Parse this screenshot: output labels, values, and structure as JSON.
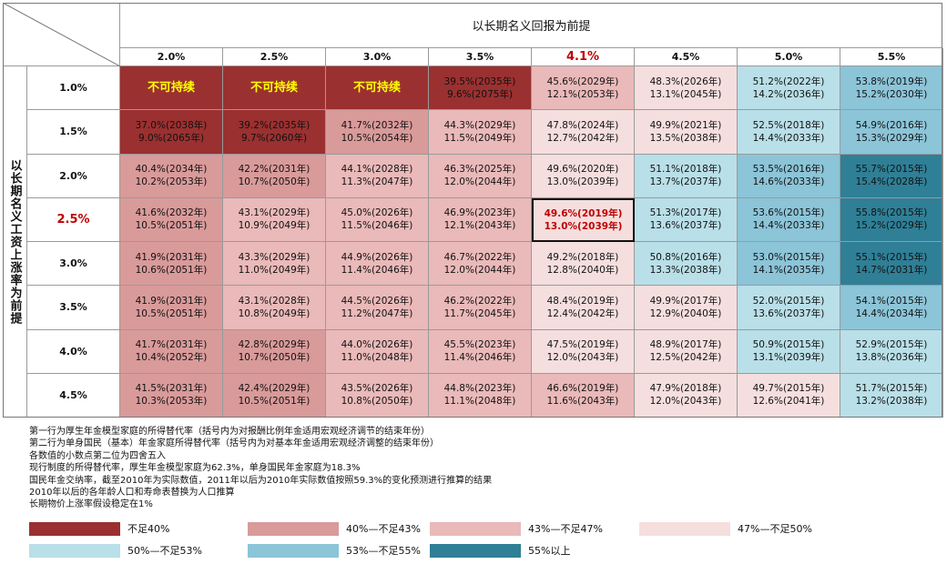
{
  "chart_data": {
    "type": "heatmap",
    "col_title": "以长期名义回报为前提",
    "row_title": "以长期名义工资上涨率为前提",
    "columns": [
      "2.0%",
      "2.5%",
      "3.0%",
      "3.5%",
      "4.1%",
      "4.5%",
      "5.0%",
      "5.5%"
    ],
    "rows": [
      "1.0%",
      "1.5%",
      "2.0%",
      "2.5%",
      "3.0%",
      "3.5%",
      "4.0%",
      "4.5%"
    ],
    "highlight_column": 4,
    "highlight_row": 3,
    "not_sustainable_label": "不可持续",
    "cells": [
      [
        {
          "not_sustainable": true,
          "bucket": 0
        },
        {
          "not_sustainable": true,
          "bucket": 0
        },
        {
          "not_sustainable": true,
          "bucket": 0
        },
        {
          "line1": "39.5%(2035年)",
          "line2": "9.6%(2075年)",
          "bucket": 0
        },
        {
          "line1": "45.6%(2029年)",
          "line2": "12.1%(2053年)",
          "bucket": 2
        },
        {
          "line1": "48.3%(2026年)",
          "line2": "13.1%(2045年)",
          "bucket": 3
        },
        {
          "line1": "51.2%(2022年)",
          "line2": "14.2%(2036年)",
          "bucket": 4
        },
        {
          "line1": "53.8%(2019年)",
          "line2": "15.2%(2030年)",
          "bucket": 5
        }
      ],
      [
        {
          "line1": "37.0%(2038年)",
          "line2": "9.0%(2065年)",
          "bucket": 0
        },
        {
          "line1": "39.2%(2035年)",
          "line2": "9.7%(2060年)",
          "bucket": 0
        },
        {
          "line1": "41.7%(2032年)",
          "line2": "10.5%(2054年)",
          "bucket": 1
        },
        {
          "line1": "44.3%(2029年)",
          "line2": "11.5%(2049年)",
          "bucket": 2
        },
        {
          "line1": "47.8%(2024年)",
          "line2": "12.7%(2042年)",
          "bucket": 3
        },
        {
          "line1": "49.9%(2021年)",
          "line2": "13.5%(2038年)",
          "bucket": 3
        },
        {
          "line1": "52.5%(2018年)",
          "line2": "14.4%(2033年)",
          "bucket": 4
        },
        {
          "line1": "54.9%(2016年)",
          "line2": "15.3%(2029年)",
          "bucket": 5
        }
      ],
      [
        {
          "line1": "40.4%(2034年)",
          "line2": "10.2%(2053年)",
          "bucket": 1
        },
        {
          "line1": "42.2%(2031年)",
          "line2": "10.7%(2050年)",
          "bucket": 1
        },
        {
          "line1": "44.1%(2028年)",
          "line2": "11.3%(2047年)",
          "bucket": 2
        },
        {
          "line1": "46.3%(2025年)",
          "line2": "12.0%(2044年)",
          "bucket": 2
        },
        {
          "line1": "49.6%(2020年)",
          "line2": "13.0%(2039年)",
          "bucket": 3
        },
        {
          "line1": "51.1%(2018年)",
          "line2": "13.7%(2037年)",
          "bucket": 4
        },
        {
          "line1": "53.5%(2016年)",
          "line2": "14.6%(2033年)",
          "bucket": 5
        },
        {
          "line1": "55.7%(2015年)",
          "line2": "15.4%(2028年)",
          "bucket": 6
        }
      ],
      [
        {
          "line1": "41.6%(2032年)",
          "line2": "10.5%(2051年)",
          "bucket": 1
        },
        {
          "line1": "43.1%(2029年)",
          "line2": "10.9%(2049年)",
          "bucket": 2
        },
        {
          "line1": "45.0%(2026年)",
          "line2": "11.5%(2046年)",
          "bucket": 2
        },
        {
          "line1": "46.9%(2023年)",
          "line2": "12.1%(2043年)",
          "bucket": 2
        },
        {
          "line1": "49.6%(2019年)",
          "line2": "13.0%(2039年)",
          "bucket": 3
        },
        {
          "line1": "51.3%(2017年)",
          "line2": "13.6%(2037年)",
          "bucket": 4
        },
        {
          "line1": "53.6%(2015年)",
          "line2": "14.4%(2033年)",
          "bucket": 5
        },
        {
          "line1": "55.8%(2015年)",
          "line2": "15.2%(2029年)",
          "bucket": 6
        }
      ],
      [
        {
          "line1": "41.9%(2031年)",
          "line2": "10.6%(2051年)",
          "bucket": 1
        },
        {
          "line1": "43.3%(2029年)",
          "line2": "11.0%(2049年)",
          "bucket": 2
        },
        {
          "line1": "44.9%(2026年)",
          "line2": "11.4%(2046年)",
          "bucket": 2
        },
        {
          "line1": "46.7%(2022年)",
          "line2": "12.0%(2044年)",
          "bucket": 2
        },
        {
          "line1": "49.2%(2018年)",
          "line2": "12.8%(2040年)",
          "bucket": 3
        },
        {
          "line1": "50.8%(2016年)",
          "line2": "13.3%(2038年)",
          "bucket": 4
        },
        {
          "line1": "53.0%(2015年)",
          "line2": "14.1%(2035年)",
          "bucket": 5
        },
        {
          "line1": "55.1%(2015年)",
          "line2": "14.7%(2031年)",
          "bucket": 6
        }
      ],
      [
        {
          "line1": "41.9%(2031年)",
          "line2": "10.5%(2051年)",
          "bucket": 1
        },
        {
          "line1": "43.1%(2028年)",
          "line2": "10.8%(2049年)",
          "bucket": 2
        },
        {
          "line1": "44.5%(2026年)",
          "line2": "11.2%(2047年)",
          "bucket": 2
        },
        {
          "line1": "46.2%(2022年)",
          "line2": "11.7%(2045年)",
          "bucket": 2
        },
        {
          "line1": "48.4%(2019年)",
          "line2": "12.4%(2042年)",
          "bucket": 3
        },
        {
          "line1": "49.9%(2017年)",
          "line2": "12.9%(2040年)",
          "bucket": 3
        },
        {
          "line1": "52.0%(2015年)",
          "line2": "13.6%(2037年)",
          "bucket": 4
        },
        {
          "line1": "54.1%(2015年)",
          "line2": "14.4%(2034年)",
          "bucket": 5
        }
      ],
      [
        {
          "line1": "41.7%(2031年)",
          "line2": "10.4%(2052年)",
          "bucket": 1
        },
        {
          "line1": "42.8%(2029年)",
          "line2": "10.7%(2050年)",
          "bucket": 1
        },
        {
          "line1": "44.0%(2026年)",
          "line2": "11.0%(2048年)",
          "bucket": 2
        },
        {
          "line1": "45.5%(2023年)",
          "line2": "11.4%(2046年)",
          "bucket": 2
        },
        {
          "line1": "47.5%(2019年)",
          "line2": "12.0%(2043年)",
          "bucket": 3
        },
        {
          "line1": "48.9%(2017年)",
          "line2": "12.5%(2042年)",
          "bucket": 3
        },
        {
          "line1": "50.9%(2015年)",
          "line2": "13.1%(2039年)",
          "bucket": 4
        },
        {
          "line1": "52.9%(2015年)",
          "line2": "13.8%(2036年)",
          "bucket": 4
        }
      ],
      [
        {
          "line1": "41.5%(2031年)",
          "line2": "10.3%(2053年)",
          "bucket": 1
        },
        {
          "line1": "42.4%(2029年)",
          "line2": "10.5%(2051年)",
          "bucket": 1
        },
        {
          "line1": "43.5%(2026年)",
          "line2": "10.8%(2050年)",
          "bucket": 2
        },
        {
          "line1": "44.8%(2023年)",
          "line2": "11.1%(2048年)",
          "bucket": 2
        },
        {
          "line1": "46.6%(2019年)",
          "line2": "11.6%(2043年)",
          "bucket": 2
        },
        {
          "line1": "47.9%(2018年)",
          "line2": "12.0%(2043年)",
          "bucket": 3
        },
        {
          "line1": "49.7%(2015年)",
          "line2": "12.6%(2041年)",
          "bucket": 3
        },
        {
          "line1": "51.7%(2015年)",
          "line2": "13.2%(2038年)",
          "bucket": 4
        }
      ]
    ],
    "notes": [
      "第一行为厚生年金模型家庭的所得替代率（括号内为对报酬比例年金适用宏观经济调节的结束年份）",
      "第二行为单身国民（基本）年金家庭所得替代率（括号内为对基本年金适用宏观经济调整的结束年份）",
      "各数值的小数点第二位为四舍五入",
      "现行制度的所得替代率，厚生年金模型家庭为62.3%，单身国民年金家庭为18.3%",
      "国民年金交纳率，截至2010年为实际数值，2011年以后为2010年实际数值按照59.3%的变化预测进行推算的结果",
      "2010年以后的各年龄人口和寿命表替换为人口推算",
      "长期物价上涨率假设稳定在1%"
    ],
    "legend": [
      {
        "label": "不足40%",
        "color": "#9b3030"
      },
      {
        "label": "40%—不足43%",
        "color": "#d99a9a"
      },
      {
        "label": "43%—不足47%",
        "color": "#eab9b9"
      },
      {
        "label": "47%—不足50%",
        "color": "#f5dede"
      },
      {
        "label": "50%—不足53%",
        "color": "#b9dfe8"
      },
      {
        "label": "53%—不足55%",
        "color": "#8cc4d8"
      },
      {
        "label": "55%以上",
        "color": "#2f7f96"
      }
    ],
    "bucket_colors": [
      "#9b3030",
      "#d99a9a",
      "#eab9b9",
      "#f5dede",
      "#b9dfe8",
      "#8cc4d8",
      "#2f7f96"
    ],
    "highlight_text_color": "#c00000"
  }
}
